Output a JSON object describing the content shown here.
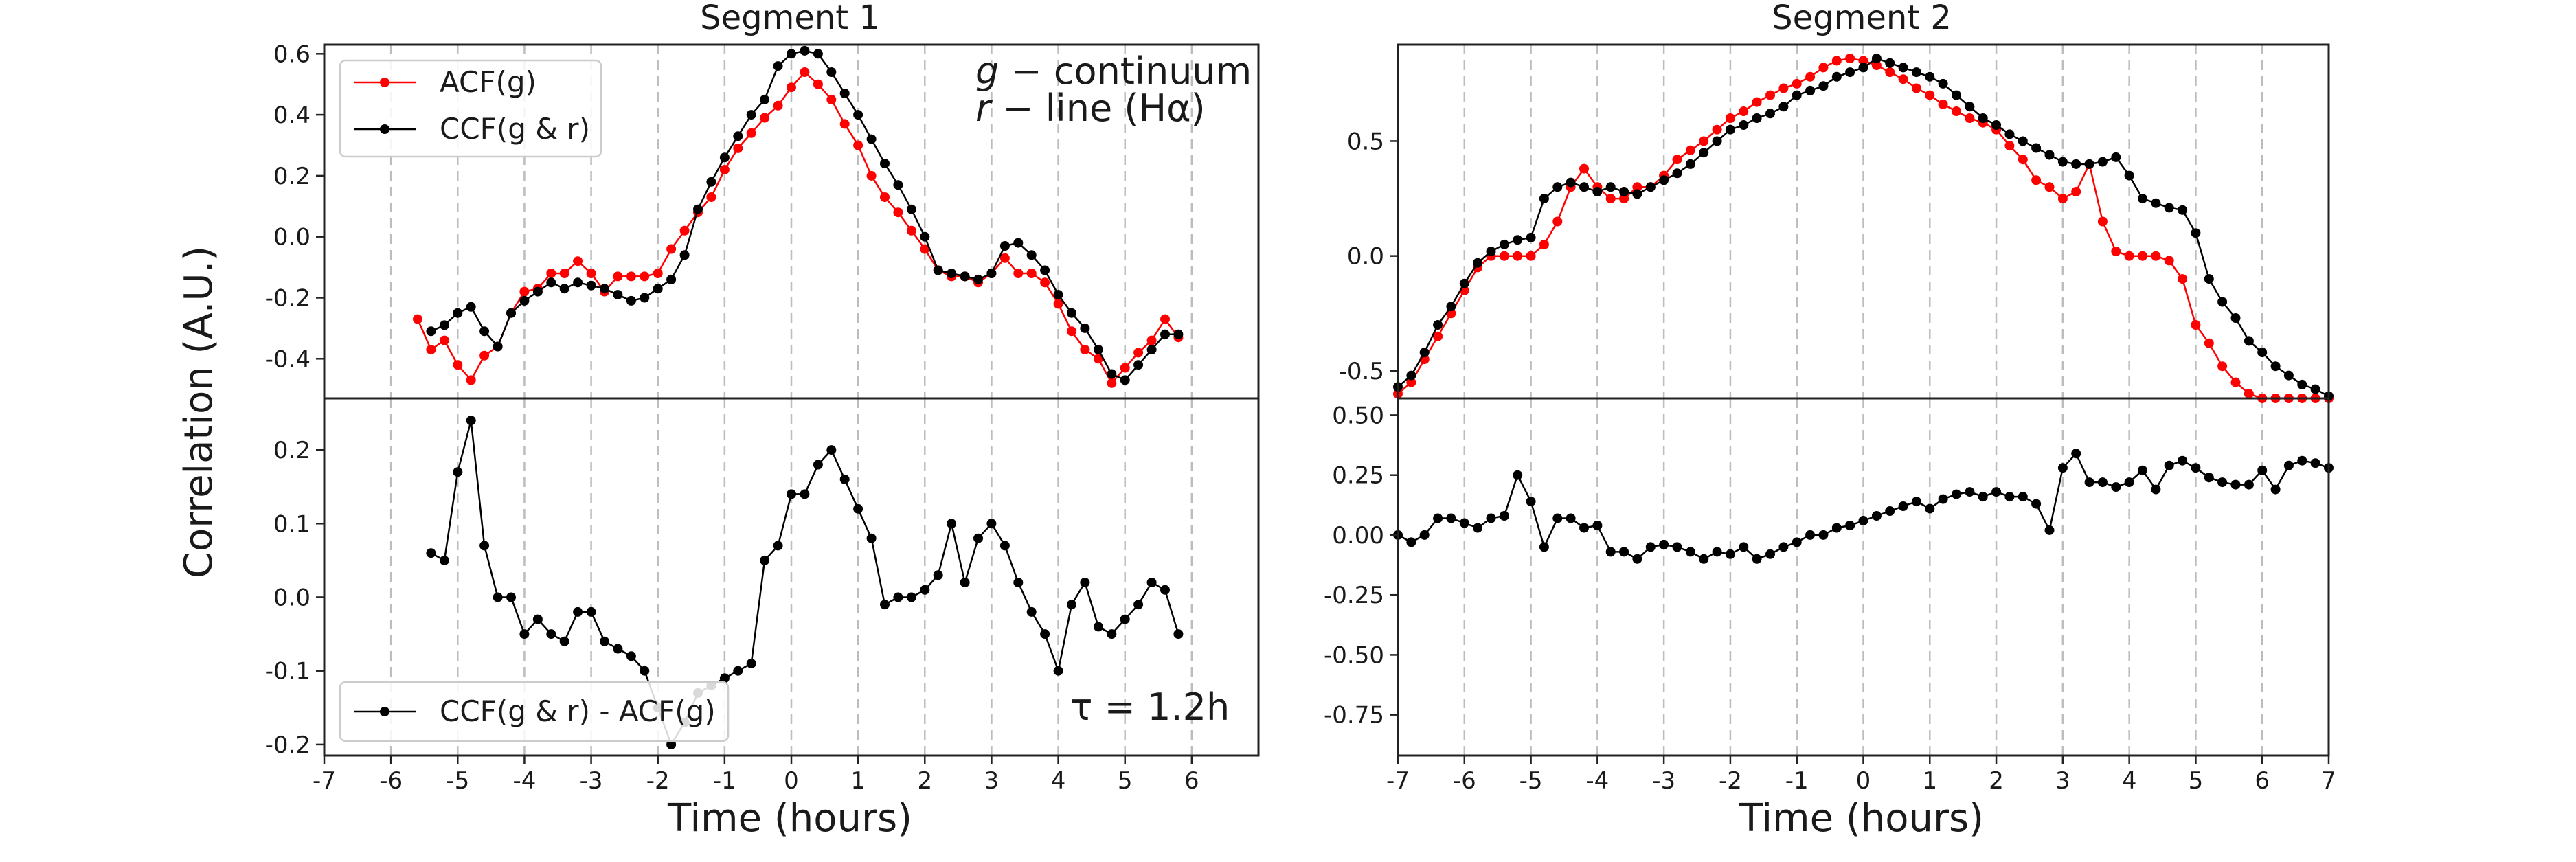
{
  "figure": {
    "ylabel": "Correlation (A.U.)",
    "xlabel": "Time (hours)",
    "segment1_title": "Segment 1",
    "segment2_title": "Segment 2",
    "annotation_band_g": "g",
    "annotation_band_g_rest": " − continuum",
    "annotation_band_r": "r",
    "annotation_band_r_rest": " − line (Hα)",
    "annotation_tau": "τ = 1.2h",
    "legend_acf": "ACF(g)",
    "legend_ccf": "CCF(g & r)",
    "legend_diff": "CCF(g & r) - ACF(g)",
    "colors": {
      "acf": "#ff0000",
      "ccf": "#000000"
    }
  },
  "chart_data": [
    {
      "type": "line",
      "title": "Segment 1",
      "xlabel": "",
      "ylabel": "Correlation (A.U.)",
      "xlim": [
        -7,
        7
      ],
      "ylim": [
        -0.53,
        0.63
      ],
      "grid": "vertical",
      "legend": "top-left",
      "xticks": [
        "-7",
        "-6",
        "-5",
        "-4",
        "-3",
        "-2",
        "-1",
        "0",
        "1",
        "2",
        "3",
        "4",
        "5",
        "6"
      ],
      "yticks": [
        "-0.4",
        "-0.2",
        "0.0",
        "0.2",
        "0.4",
        "0.6"
      ],
      "series": [
        {
          "name": "ACF(g)",
          "x": [
            -5.6,
            -5.4,
            -5.2,
            -5.0,
            -4.8,
            -4.6,
            -4.4,
            -4.2,
            -4.0,
            -3.8,
            -3.6,
            -3.4,
            -3.2,
            -3.0,
            -2.8,
            -2.6,
            -2.4,
            -2.2,
            -2.0,
            -1.8,
            -1.6,
            -1.4,
            -1.2,
            -1.0,
            -0.8,
            -0.6,
            -0.4,
            -0.2,
            0.0,
            0.2,
            0.4,
            0.6,
            0.8,
            1.0,
            1.2,
            1.4,
            1.6,
            1.8,
            2.0,
            2.2,
            2.4,
            2.6,
            2.8,
            3.0,
            3.2,
            3.4,
            3.6,
            3.8,
            4.0,
            4.2,
            4.4,
            4.6,
            4.8,
            5.0,
            5.2,
            5.4,
            5.6,
            5.8
          ],
          "y": [
            -0.27,
            -0.37,
            -0.34,
            -0.42,
            -0.47,
            -0.39,
            -0.36,
            -0.25,
            -0.18,
            -0.17,
            -0.12,
            -0.12,
            -0.08,
            -0.12,
            -0.18,
            -0.13,
            -0.13,
            -0.13,
            -0.12,
            -0.04,
            0.02,
            0.08,
            0.13,
            0.22,
            0.29,
            0.34,
            0.39,
            0.43,
            0.49,
            0.54,
            0.5,
            0.45,
            0.37,
            0.3,
            0.2,
            0.13,
            0.08,
            0.02,
            -0.04,
            -0.11,
            -0.13,
            -0.13,
            -0.15,
            -0.12,
            -0.07,
            -0.12,
            -0.12,
            -0.15,
            -0.22,
            -0.31,
            -0.37,
            -0.4,
            -0.48,
            -0.43,
            -0.38,
            -0.34,
            -0.27,
            -0.33
          ]
        },
        {
          "name": "CCF(g & r)",
          "x": [
            -5.4,
            -5.2,
            -5.0,
            -4.8,
            -4.6,
            -4.4,
            -4.2,
            -4.0,
            -3.8,
            -3.6,
            -3.4,
            -3.2,
            -3.0,
            -2.8,
            -2.6,
            -2.4,
            -2.2,
            -2.0,
            -1.8,
            -1.6,
            -1.4,
            -1.2,
            -1.0,
            -0.8,
            -0.6,
            -0.4,
            -0.2,
            0.0,
            0.2,
            0.4,
            0.6,
            0.8,
            1.0,
            1.2,
            1.4,
            1.6,
            1.8,
            2.0,
            2.2,
            2.4,
            2.6,
            2.8,
            3.0,
            3.2,
            3.4,
            3.6,
            3.8,
            4.0,
            4.2,
            4.4,
            4.6,
            4.8,
            5.0,
            5.2,
            5.4,
            5.6,
            5.8
          ],
          "y": [
            -0.31,
            -0.29,
            -0.25,
            -0.23,
            -0.31,
            -0.36,
            -0.25,
            -0.21,
            -0.18,
            -0.15,
            -0.17,
            -0.15,
            -0.16,
            -0.17,
            -0.19,
            -0.21,
            -0.2,
            -0.17,
            -0.14,
            -0.06,
            0.09,
            0.18,
            0.26,
            0.33,
            0.4,
            0.45,
            0.56,
            0.6,
            0.61,
            0.6,
            0.54,
            0.47,
            0.4,
            0.32,
            0.24,
            0.17,
            0.09,
            0.0,
            -0.11,
            -0.12,
            -0.13,
            -0.14,
            -0.12,
            -0.03,
            -0.02,
            -0.06,
            -0.11,
            -0.19,
            -0.25,
            -0.3,
            -0.37,
            -0.45,
            -0.47,
            -0.42,
            -0.37,
            -0.32,
            -0.32
          ]
        }
      ]
    },
    {
      "type": "line",
      "title": "",
      "xlabel": "Time (hours)",
      "ylabel": "",
      "xlim": [
        -7,
        7
      ],
      "ylim": [
        -0.215,
        0.27
      ],
      "grid": "vertical",
      "legend": "bottom-left",
      "xticks": [
        "-7",
        "-6",
        "-5",
        "-4",
        "-3",
        "-2",
        "-1",
        "0",
        "1",
        "2",
        "3",
        "4",
        "5",
        "6"
      ],
      "yticks": [
        "-0.2",
        "-0.1",
        "0.0",
        "0.1",
        "0.2"
      ],
      "series": [
        {
          "name": "CCF(g & r) - ACF(g)",
          "x": [
            -5.4,
            -5.2,
            -5.0,
            -4.8,
            -4.6,
            -4.4,
            -4.2,
            -4.0,
            -3.8,
            -3.6,
            -3.4,
            -3.2,
            -3.0,
            -2.8,
            -2.6,
            -2.4,
            -2.2,
            -2.0,
            -1.8,
            -1.6,
            -1.4,
            -1.2,
            -1.0,
            -0.8,
            -0.6,
            -0.4,
            -0.2,
            0.0,
            0.2,
            0.4,
            0.6,
            0.8,
            1.0,
            1.2,
            1.4,
            1.6,
            1.8,
            2.0,
            2.2,
            2.4,
            2.6,
            2.8,
            3.0,
            3.2,
            3.4,
            3.6,
            3.8,
            4.0,
            4.2,
            4.4,
            4.6,
            4.8,
            5.0,
            5.2,
            5.4,
            5.6,
            5.8
          ],
          "y": [
            0.06,
            0.05,
            0.17,
            0.24,
            0.07,
            0.0,
            0.0,
            -0.05,
            -0.03,
            -0.05,
            -0.06,
            -0.02,
            -0.02,
            -0.06,
            -0.07,
            -0.08,
            -0.1,
            -0.15,
            -0.2,
            -0.17,
            -0.13,
            -0.12,
            -0.11,
            -0.1,
            -0.09,
            0.05,
            0.07,
            0.14,
            0.14,
            0.18,
            0.2,
            0.16,
            0.12,
            0.08,
            -0.01,
            0.0,
            0.0,
            0.01,
            0.03,
            0.1,
            0.02,
            0.08,
            0.1,
            0.07,
            0.02,
            -0.02,
            -0.05,
            -0.1,
            -0.01,
            0.02,
            -0.04,
            -0.05,
            -0.03,
            -0.01,
            0.02,
            0.01,
            -0.05
          ]
        }
      ]
    },
    {
      "type": "line",
      "title": "Segment 2",
      "xlabel": "",
      "ylabel": "",
      "xlim": [
        -7,
        7
      ],
      "ylim": [
        -0.62,
        0.92
      ],
      "grid": "vertical",
      "legend": "none",
      "xticks": [
        "-7",
        "-6",
        "-5",
        "-4",
        "-3",
        "-2",
        "-1",
        "0",
        "1",
        "2",
        "3",
        "4",
        "5",
        "6",
        "7"
      ],
      "yticks": [
        "-0.5",
        "0.0",
        "0.5"
      ],
      "series": [
        {
          "name": "ACF(g)",
          "x": [
            -7.0,
            -6.8,
            -6.6,
            -6.4,
            -6.2,
            -6.0,
            -5.8,
            -5.6,
            -5.4,
            -5.2,
            -5.0,
            -4.8,
            -4.6,
            -4.4,
            -4.2,
            -4.0,
            -3.8,
            -3.6,
            -3.4,
            -3.2,
            -3.0,
            -2.8,
            -2.6,
            -2.4,
            -2.2,
            -2.0,
            -1.8,
            -1.6,
            -1.4,
            -1.2,
            -1.0,
            -0.8,
            -0.6,
            -0.4,
            -0.2,
            0.0,
            0.2,
            0.4,
            0.6,
            0.8,
            1.0,
            1.2,
            1.4,
            1.6,
            1.8,
            2.0,
            2.2,
            2.4,
            2.6,
            2.8,
            3.0,
            3.2,
            3.4,
            3.6,
            3.8,
            4.0,
            4.2,
            4.4,
            4.6,
            4.8,
            5.0,
            5.2,
            5.4,
            5.6,
            5.8,
            6.0,
            6.2,
            6.4,
            6.6,
            6.8,
            7.0
          ],
          "y": [
            -0.6,
            -0.55,
            -0.45,
            -0.35,
            -0.25,
            -0.15,
            -0.05,
            0.0,
            0.0,
            0.0,
            0.0,
            0.05,
            0.15,
            0.3,
            0.38,
            0.3,
            0.25,
            0.25,
            0.3,
            0.3,
            0.35,
            0.42,
            0.46,
            0.5,
            0.55,
            0.6,
            0.63,
            0.67,
            0.7,
            0.73,
            0.75,
            0.78,
            0.82,
            0.85,
            0.86,
            0.85,
            0.83,
            0.8,
            0.77,
            0.73,
            0.7,
            0.66,
            0.63,
            0.6,
            0.58,
            0.55,
            0.48,
            0.42,
            0.33,
            0.3,
            0.25,
            0.28,
            0.4,
            0.15,
            0.02,
            0.0,
            0.0,
            0.0,
            -0.02,
            -0.1,
            -0.3,
            -0.38,
            -0.48,
            -0.55,
            -0.6,
            -0.62,
            -0.64,
            -0.66,
            -0.68,
            -0.7,
            -0.72
          ]
        },
        {
          "name": "CCF(g & r)",
          "x": [
            -7.0,
            -6.8,
            -6.6,
            -6.4,
            -6.2,
            -6.0,
            -5.8,
            -5.6,
            -5.4,
            -5.2,
            -5.0,
            -4.8,
            -4.6,
            -4.4,
            -4.2,
            -4.0,
            -3.8,
            -3.6,
            -3.4,
            -3.2,
            -3.0,
            -2.8,
            -2.6,
            -2.4,
            -2.2,
            -2.0,
            -1.8,
            -1.6,
            -1.4,
            -1.2,
            -1.0,
            -0.8,
            -0.6,
            -0.4,
            -0.2,
            0.0,
            0.2,
            0.4,
            0.6,
            0.8,
            1.0,
            1.2,
            1.4,
            1.6,
            1.8,
            2.0,
            2.2,
            2.4,
            2.6,
            2.8,
            3.0,
            3.2,
            3.4,
            3.6,
            3.8,
            4.0,
            4.2,
            4.4,
            4.6,
            4.8,
            5.0,
            5.2,
            5.4,
            5.6,
            5.8,
            6.0,
            6.2,
            6.4,
            6.6,
            6.8,
            7.0
          ],
          "y": [
            -0.57,
            -0.52,
            -0.42,
            -0.3,
            -0.22,
            -0.12,
            -0.03,
            0.02,
            0.05,
            0.07,
            0.08,
            0.25,
            0.3,
            0.32,
            0.3,
            0.28,
            0.3,
            0.28,
            0.27,
            0.3,
            0.33,
            0.36,
            0.4,
            0.45,
            0.5,
            0.55,
            0.57,
            0.6,
            0.62,
            0.65,
            0.7,
            0.72,
            0.74,
            0.78,
            0.8,
            0.82,
            0.86,
            0.84,
            0.82,
            0.8,
            0.78,
            0.75,
            0.7,
            0.65,
            0.6,
            0.57,
            0.53,
            0.5,
            0.47,
            0.44,
            0.41,
            0.4,
            0.4,
            0.41,
            0.43,
            0.35,
            0.25,
            0.23,
            0.21,
            0.2,
            0.1,
            -0.1,
            -0.2,
            -0.27,
            -0.37,
            -0.42,
            -0.48,
            -0.52,
            -0.56,
            -0.58,
            -0.61
          ]
        }
      ]
    },
    {
      "type": "line",
      "title": "",
      "xlabel": "Time (hours)",
      "ylabel": "",
      "xlim": [
        -7,
        7
      ],
      "ylim": [
        -0.92,
        0.57
      ],
      "grid": "vertical",
      "legend": "none",
      "xticks": [
        "-7",
        "-6",
        "-5",
        "-4",
        "-3",
        "-2",
        "-1",
        "0",
        "1",
        "2",
        "3",
        "4",
        "5",
        "6",
        "7"
      ],
      "yticks": [
        "-0.75",
        "-0.50",
        "-0.25",
        "0.00",
        "0.25",
        "0.50"
      ],
      "series": [
        {
          "name": "CCF(g & r) - ACF(g)",
          "x": [
            -7.0,
            -6.8,
            -6.6,
            -6.4,
            -6.2,
            -6.0,
            -5.8,
            -5.6,
            -5.4,
            -5.2,
            -5.0,
            -4.8,
            -4.6,
            -4.4,
            -4.2,
            -4.0,
            -3.8,
            -3.6,
            -3.4,
            -3.2,
            -3.0,
            -2.8,
            -2.6,
            -2.4,
            -2.2,
            -2.0,
            -1.8,
            -1.6,
            -1.4,
            -1.2,
            -1.0,
            -0.8,
            -0.6,
            -0.4,
            -0.2,
            0.0,
            0.2,
            0.4,
            0.6,
            0.8,
            1.0,
            1.2,
            1.4,
            1.6,
            1.8,
            2.0,
            2.2,
            2.4,
            2.6,
            2.8,
            3.0,
            3.2,
            3.4,
            3.6,
            3.8,
            4.0,
            4.2,
            4.4,
            4.6,
            4.8,
            5.0,
            5.2,
            5.4,
            5.6,
            5.8,
            6.0,
            6.2,
            6.4,
            6.6,
            6.8,
            7.0
          ],
          "y": [
            0.0,
            -0.03,
            0.0,
            0.07,
            0.07,
            0.05,
            0.03,
            0.07,
            0.08,
            0.25,
            0.14,
            -0.05,
            0.07,
            0.07,
            0.03,
            0.04,
            -0.07,
            -0.07,
            -0.1,
            -0.05,
            -0.04,
            -0.05,
            -0.07,
            -0.1,
            -0.07,
            -0.08,
            -0.05,
            -0.1,
            -0.08,
            -0.05,
            -0.03,
            0.0,
            0.0,
            0.03,
            0.04,
            0.06,
            0.08,
            0.1,
            0.12,
            0.14,
            0.11,
            0.15,
            0.17,
            0.18,
            0.16,
            0.18,
            0.16,
            0.16,
            0.13,
            0.02,
            0.28,
            0.34,
            0.22,
            0.22,
            0.2,
            0.22,
            0.27,
            0.19,
            0.29,
            0.31,
            0.28,
            0.24,
            0.22,
            0.21,
            0.21,
            0.27,
            0.19,
            0.29,
            0.31,
            0.3,
            0.28
          ]
        }
      ]
    }
  ]
}
